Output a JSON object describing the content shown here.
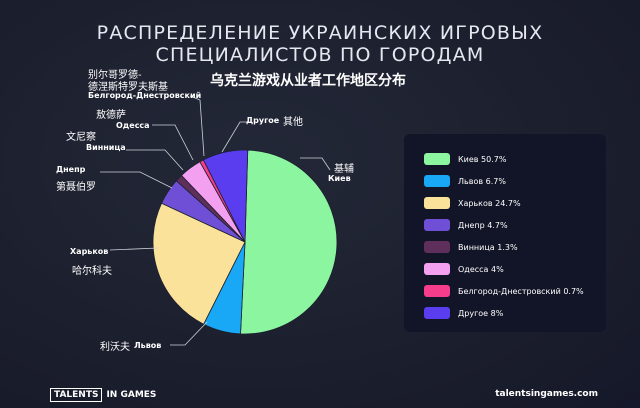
{
  "title_line1": "РАСПРЕДЕЛЕНИЕ УКРАИНСКИХ ИГРОВЫХ",
  "title_line2": "СПЕЦИАЛИСТОВ ПО ГОРОДАМ",
  "subtitle_cn": "乌克兰游戏从业者工作地区分布",
  "chart_data": {
    "type": "pie",
    "title": "РАСПРЕДЕЛЕНИЕ УКРАИНСКИХ ИГРОВЫХ СПЕЦИАЛИСТОВ ПО ГОРОДАМ",
    "subtitle": "乌克兰游戏从业者工作地区分布",
    "legend_position": "right",
    "slices": [
      {
        "label": "Киев",
        "cn": "基辅",
        "value": 50.7,
        "color": "#8cf5a0",
        "legend": "Киев 50.7%"
      },
      {
        "label": "Львов",
        "cn": "利沃夫",
        "value": 6.7,
        "color": "#19a8f5",
        "legend": "Львов 6.7%"
      },
      {
        "label": "Харьков",
        "cn": "哈尔科夫",
        "value": 24.7,
        "color": "#fbe29a",
        "legend": "Харьков 24.7%"
      },
      {
        "label": "Днепр",
        "cn": "第聂伯罗",
        "value": 4.7,
        "color": "#6f4fd6",
        "legend": "Днепр 4.7%"
      },
      {
        "label": "Винница",
        "cn": "文尼察",
        "value": 1.3,
        "color": "#5e2f5a",
        "legend": "Винница 1.3%"
      },
      {
        "label": "Одесса",
        "cn": "敖德萨",
        "value": 4.0,
        "color": "#f3a0f0",
        "legend": "Одесса 4%"
      },
      {
        "label": "Белгород-Днестровский",
        "cn": "别尔哥罗德-\n德涅斯特罗夫斯基",
        "value": 0.7,
        "color": "#f53d8c",
        "legend": "Белгород-Днестровский 0.7%"
      },
      {
        "label": "Другое",
        "cn": "其他",
        "value": 8.0,
        "color": "#5b3df0",
        "legend": "Другое 8%"
      }
    ]
  },
  "labels": {
    "kiev": "Киев",
    "kiev_cn": "基辅",
    "lvov": "Львов",
    "lvov_cn": "利沃夫",
    "kharkov": "Харьков",
    "kharkov_cn": "哈尔科夫",
    "dnepr": "Днепр",
    "dnepr_cn": "第聂伯罗",
    "vinnitsa": "Винница",
    "vinnitsa_cn": "文尼察",
    "odessa": "Одесса",
    "odessa_cn": "敖德萨",
    "belgorod": "Белгород-Днестровский",
    "belgorod_cn_1": "别尔哥罗德-",
    "belgorod_cn_2": "德涅斯特罗夫斯基",
    "other": "Другое",
    "other_cn": "其他"
  },
  "brand": {
    "part1": "TALENTS",
    "part2": "IN GAMES",
    "site": "talentsingames.com"
  }
}
